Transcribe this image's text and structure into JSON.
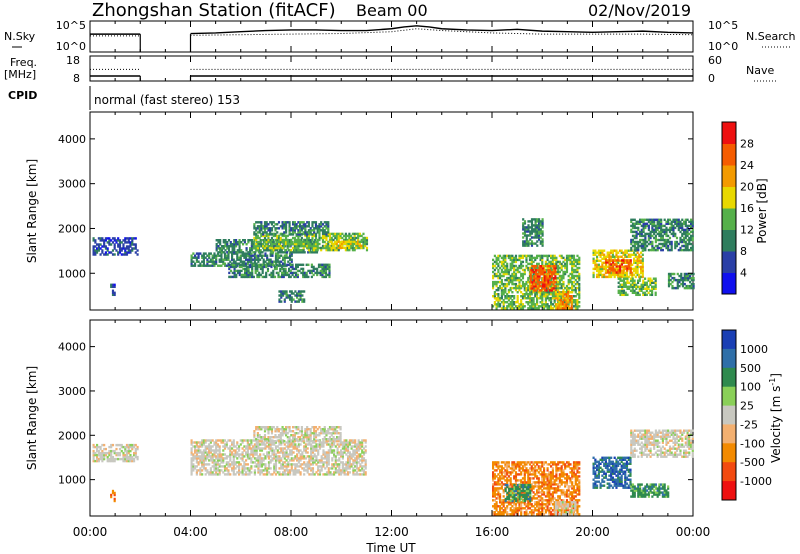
{
  "header": {
    "station": "Zhongshan Station (fitACF)",
    "beam": "Beam 00",
    "date": "02/Nov/2019"
  },
  "chart_data": [
    {
      "type": "line",
      "panel": "noise",
      "ylabel_left": "N.Sky",
      "ylabel_right": "N.Search",
      "left_ticks": [
        "10^5",
        "10^0"
      ],
      "right_ticks": [
        "10^5",
        "10^0"
      ],
      "gaps_hours": [
        [
          2.0,
          4.0
        ]
      ],
      "series": [
        {
          "name": "N.Sky",
          "x": [
            0,
            0.5,
            1,
            1.5,
            2,
            4,
            5,
            6,
            7,
            8,
            9,
            10,
            11,
            12,
            12.5,
            13,
            13.5,
            14,
            15,
            16,
            17,
            18,
            19,
            20,
            21,
            22,
            23,
            24
          ],
          "y": [
            3.0,
            3.0,
            3.0,
            3.0,
            3.0,
            3.1,
            3.2,
            3.4,
            3.6,
            3.7,
            3.7,
            3.6,
            3.6,
            3.9,
            4.2,
            4.4,
            4.2,
            3.9,
            3.7,
            3.6,
            3.8,
            3.5,
            3.4,
            3.3,
            3.4,
            3.5,
            3.3,
            3.2
          ]
        },
        {
          "name": "N.Search",
          "x": [
            0,
            1,
            2,
            4,
            6,
            8,
            10,
            12,
            13,
            14,
            16,
            18,
            20,
            22,
            24
          ],
          "y": [
            2.7,
            2.7,
            2.7,
            2.8,
            2.9,
            3.0,
            3.1,
            3.4,
            3.9,
            3.6,
            3.2,
            3.0,
            3.0,
            3.0,
            2.9
          ]
        }
      ]
    },
    {
      "type": "line",
      "panel": "frequency",
      "ylabel_left_1": "Freq.",
      "ylabel_left_2": "[MHz]",
      "ylabel_right": "Nave",
      "left_ticks": [
        "18",
        "8"
      ],
      "right_ticks": [
        "60",
        "0"
      ],
      "gaps_hours": [
        [
          2.0,
          4.0
        ]
      ],
      "series": [
        {
          "name": "Freq.",
          "x": [
            0,
            2,
            4,
            24
          ],
          "y": [
            10,
            10,
            10,
            10
          ]
        },
        {
          "name": "Nave",
          "x": [
            0,
            2,
            4,
            24
          ],
          "y": [
            28,
            28,
            28,
            28
          ]
        }
      ]
    },
    {
      "type": "table",
      "panel": "cpid",
      "label": "CPID",
      "value": "normal (fast stereo) 153"
    },
    {
      "type": "heatmap",
      "panel": "power",
      "ylabel": "Slant Range [km]",
      "yticks": [
        1000,
        2000,
        3000,
        4000
      ],
      "ylim": [
        180,
        4600
      ],
      "xlim": [
        0,
        24
      ],
      "colorbar": {
        "label": "Power [dB]",
        "ticks": [
          "4",
          "8",
          "12",
          "16",
          "20",
          "24",
          "28"
        ],
        "colors": [
          "#1010ee",
          "#2a3fa6",
          "#2f7d5e",
          "#55b04a",
          "#e8d800",
          "#f39a00",
          "#f55c00",
          "#ee1010"
        ]
      },
      "regions": [
        {
          "t0": 0.1,
          "t1": 1.9,
          "r0": 1400,
          "r1": 1800,
          "level": 1
        },
        {
          "t0": 0.8,
          "t1": 1.0,
          "r0": 500,
          "r1": 750,
          "level": 1
        },
        {
          "t0": 4.0,
          "t1": 8.0,
          "r0": 1150,
          "r1": 1450,
          "level": 2
        },
        {
          "t0": 5.0,
          "t1": 9.0,
          "r0": 1450,
          "r1": 1750,
          "level": 2
        },
        {
          "t0": 6.5,
          "t1": 11.0,
          "r0": 1500,
          "r1": 1900,
          "level": 3
        },
        {
          "t0": 9.5,
          "t1": 10.8,
          "r0": 1550,
          "r1": 1700,
          "level": 4
        },
        {
          "t0": 6.5,
          "t1": 9.5,
          "r0": 1850,
          "r1": 2150,
          "level": 2
        },
        {
          "t0": 5.5,
          "t1": 9.5,
          "r0": 900,
          "r1": 1200,
          "level": 2
        },
        {
          "t0": 7.5,
          "t1": 8.5,
          "r0": 350,
          "r1": 600,
          "level": 2
        },
        {
          "t0": 16.0,
          "t1": 19.5,
          "r0": 200,
          "r1": 1400,
          "level": 3
        },
        {
          "t0": 17.5,
          "t1": 18.5,
          "r0": 600,
          "r1": 1150,
          "level": 6
        },
        {
          "t0": 18.5,
          "t1": 19.2,
          "r0": 200,
          "r1": 600,
          "level": 5
        },
        {
          "t0": 17.2,
          "t1": 18.0,
          "r0": 1600,
          "r1": 2200,
          "level": 2
        },
        {
          "t0": 20.0,
          "t1": 22.0,
          "r0": 900,
          "r1": 1500,
          "level": 4
        },
        {
          "t0": 20.5,
          "t1": 21.5,
          "r0": 1000,
          "r1": 1300,
          "level": 6
        },
        {
          "t0": 21.0,
          "t1": 22.5,
          "r0": 500,
          "r1": 900,
          "level": 3
        },
        {
          "t0": 21.5,
          "t1": 24.0,
          "r0": 1500,
          "r1": 2200,
          "level": 2
        },
        {
          "t0": 23.0,
          "t1": 24.0,
          "r0": 650,
          "r1": 1000,
          "level": 2
        }
      ]
    },
    {
      "type": "heatmap",
      "panel": "velocity",
      "ylabel": "Slant Range [km]",
      "yticks": [
        1000,
        2000,
        3000,
        4000
      ],
      "ylim": [
        180,
        4600
      ],
      "xlim": [
        0,
        24
      ],
      "colorbar": {
        "label": "Velocity [m s",
        "label_sup": "-1",
        "label_end": "]",
        "ticks": [
          "1000",
          "500",
          "100",
          "25",
          "-25",
          "-100",
          "-500",
          "-1000"
        ],
        "colors": [
          "#1a3fb4",
          "#2f6fa8",
          "#2f8a4e",
          "#8ad058",
          "#c8c8c0",
          "#f3b070",
          "#f38a00",
          "#f34a10",
          "#ee1010"
        ]
      },
      "regions": [
        {
          "t0": 0.1,
          "t1": 1.9,
          "r0": 1400,
          "r1": 1800,
          "level": 4
        },
        {
          "t0": 0.8,
          "t1": 1.0,
          "r0": 500,
          "r1": 750,
          "level": 6
        },
        {
          "t0": 4.0,
          "t1": 11.0,
          "r0": 1100,
          "r1": 1900,
          "level": 4
        },
        {
          "t0": 6.5,
          "t1": 10.0,
          "r0": 1850,
          "r1": 2200,
          "level": 4
        },
        {
          "t0": 16.0,
          "t1": 19.5,
          "r0": 200,
          "r1": 1400,
          "level": 6
        },
        {
          "t0": 16.5,
          "t1": 17.5,
          "r0": 500,
          "r1": 900,
          "level": 2
        },
        {
          "t0": 18.5,
          "t1": 19.3,
          "r0": 200,
          "r1": 500,
          "level": 4
        },
        {
          "t0": 20.0,
          "t1": 21.5,
          "r0": 800,
          "r1": 1500,
          "level": 1
        },
        {
          "t0": 21.5,
          "t1": 23.0,
          "r0": 600,
          "r1": 900,
          "level": 2
        },
        {
          "t0": 21.5,
          "t1": 24.0,
          "r0": 1500,
          "r1": 2100,
          "level": 4
        }
      ]
    }
  ],
  "x_axis": {
    "ticks": [
      "00:00",
      "04:00",
      "08:00",
      "12:00",
      "16:00",
      "20:00",
      "00:00"
    ],
    "label": "Time UT"
  }
}
